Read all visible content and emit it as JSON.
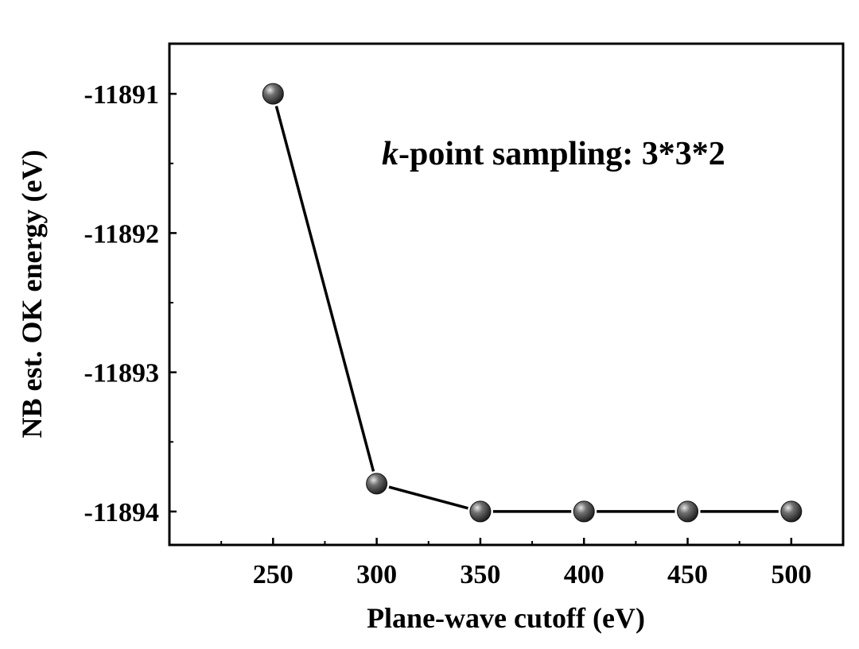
{
  "chart_data": {
    "type": "line",
    "x": [
      250,
      300,
      350,
      400,
      450,
      500
    ],
    "series": [
      {
        "values": [
          -11891.0,
          -11893.8,
          -11894.0,
          -11894.0,
          -11894.0,
          -11894.0
        ]
      }
    ],
    "xlabel": "Plane-wave cutoff (eV)",
    "ylabel": "NB est. OK energy (eV)",
    "xticks": [
      250,
      300,
      350,
      400,
      450,
      500
    ],
    "yticks": [
      -11891,
      -11892,
      -11893,
      -11894
    ],
    "xlim": [
      200,
      525
    ],
    "ylim": [
      -11894.24,
      -11890.64
    ],
    "grid": false,
    "annotation": {
      "italic": "k",
      "rest": "-point sampling: 3*3*2"
    },
    "colors": {
      "line": "#000000",
      "marker": "#3a3a3a",
      "marker_highlight": "#d8d8d8"
    }
  }
}
